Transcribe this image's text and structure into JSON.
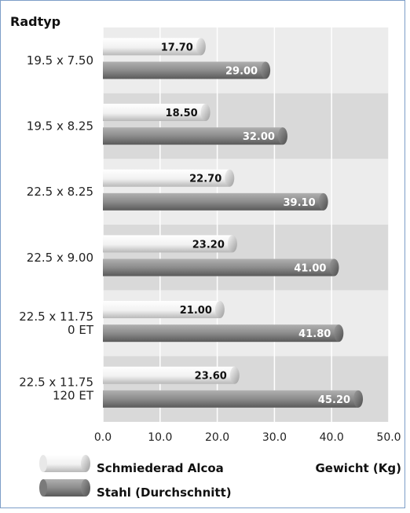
{
  "chart_data": {
    "type": "bar",
    "orientation": "horizontal",
    "title": "Radtyp",
    "categories": [
      [
        "19.5 x 7.50"
      ],
      [
        "19.5 x 8.25"
      ],
      [
        "22.5 x 8.25"
      ],
      [
        "22.5 x 9.00"
      ],
      [
        "22.5 x 11.75",
        "0 ET"
      ],
      [
        "22.5 x 11.75",
        "120 ET"
      ]
    ],
    "series": [
      {
        "name": "Schmiederad Alcoa",
        "values": [
          17.7,
          18.5,
          22.7,
          23.2,
          21.0,
          23.6
        ]
      },
      {
        "name": "Stahl (Durchschnitt)",
        "values": [
          29.0,
          32.0,
          39.1,
          41.0,
          41.8,
          45.2
        ]
      }
    ],
    "value_labels": [
      [
        "17.70",
        "18.50",
        "22.70",
        "23.20",
        "21.00",
        "23.60"
      ],
      [
        "29.00",
        "32.00",
        "39.10",
        "41.00",
        "41.80",
        "45.20"
      ]
    ],
    "xlabel": "Gewicht (Kg)",
    "xlim": [
      0,
      50
    ],
    "xticks": [
      "0.0",
      "10.0",
      "20.0",
      "30.0",
      "40.0",
      "50.0"
    ],
    "grid": true,
    "legend_position": "bottom-left"
  },
  "colors": {
    "series_light": "#f2f2f2",
    "series_dark": "#8a8a8a",
    "band_light": "#ececec",
    "band_dark": "#d9d9d9",
    "frame": "#7d9ec8"
  }
}
